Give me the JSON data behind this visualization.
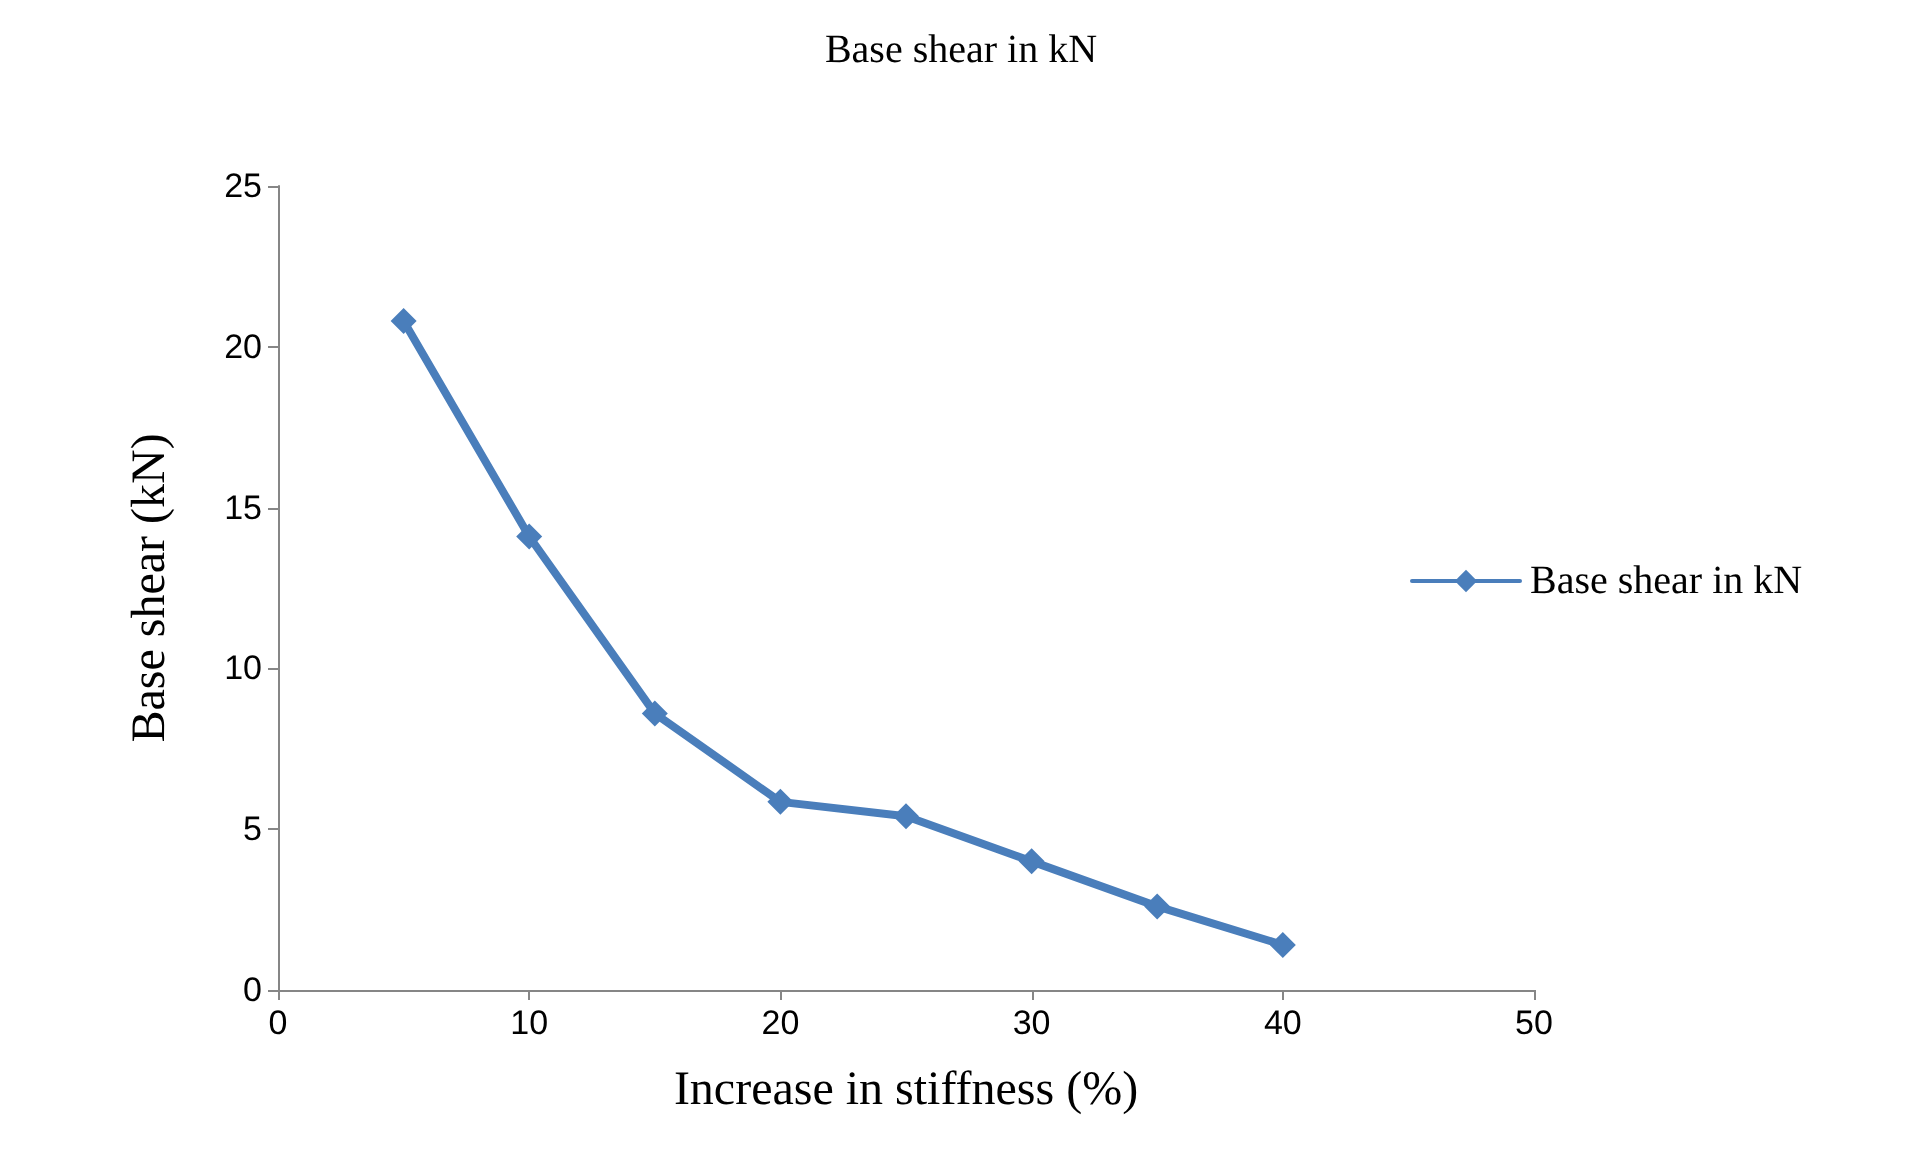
{
  "chart_data": {
    "type": "line",
    "title": "Base shear in kN",
    "xlabel": "Increase in stiffness (%)",
    "ylabel": "Base shear (kN)",
    "x": [
      5,
      10,
      15,
      20,
      25,
      30,
      35,
      40
    ],
    "series": [
      {
        "name": "Base shear in kN",
        "color": "#4a7ebb",
        "values": [
          20.8,
          14.1,
          8.6,
          5.85,
          5.4,
          4.0,
          2.6,
          1.4
        ]
      }
    ],
    "xlim": [
      0,
      50
    ],
    "xticks": [
      0,
      10,
      20,
      30,
      40,
      50
    ],
    "ylim": [
      0,
      25
    ],
    "yticks": [
      0,
      5,
      10,
      15,
      20,
      25
    ],
    "grid": false,
    "legend": "right",
    "marker": "diamond",
    "line_style": "solid"
  }
}
